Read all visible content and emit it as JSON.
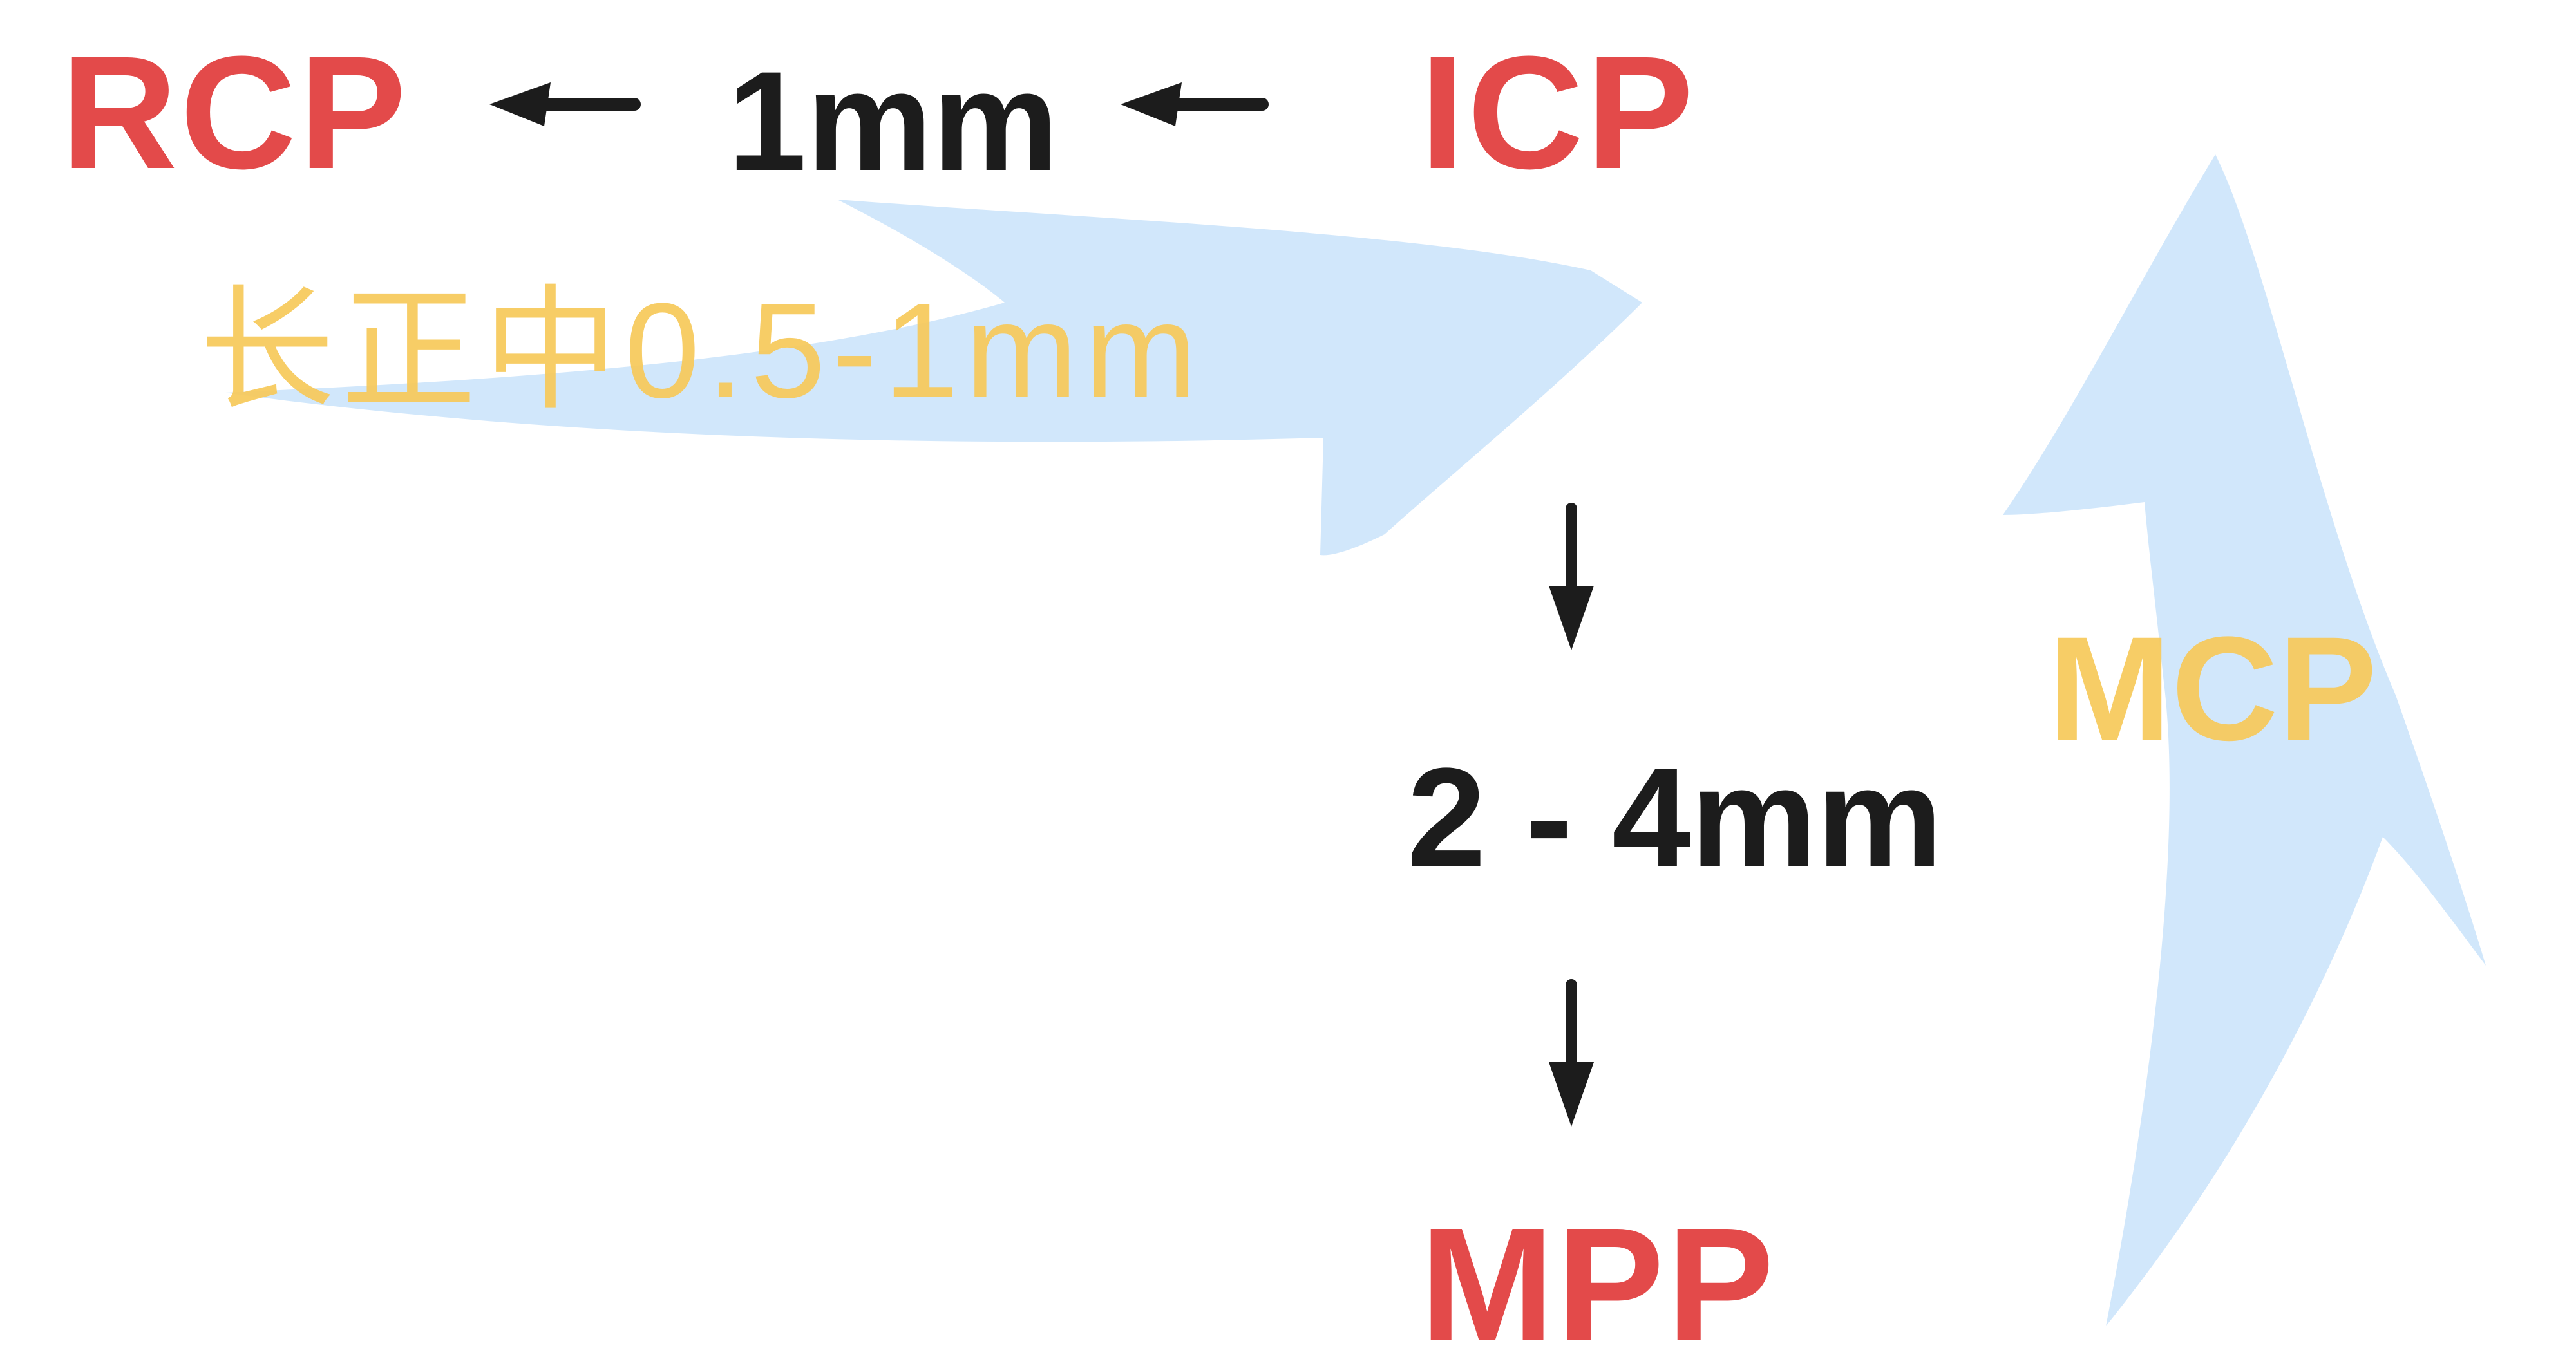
{
  "labels": {
    "rcp": "RCP",
    "icp": "ICP",
    "mpp": "MPP",
    "one_mm": "1mm",
    "two_four_mm": "2 - 4mm",
    "centric": "长正中0.5-1mm",
    "mcp": "MCP"
  },
  "colors": {
    "position_label": "#e34a4a",
    "distance_label": "#1c1c1c",
    "annotation_label": "#f7c95a",
    "wide_arrow": "#cfe6fb",
    "small_arrow": "#1c1c1c"
  },
  "icons": {
    "arrow_icp_to_1mm": "left-arrow-icon",
    "arrow_1mm_to_rcp": "left-arrow-icon",
    "arrow_icp_to_2_4mm": "down-arrow-icon",
    "arrow_2_4mm_to_mpp": "down-arrow-icon",
    "wide_arrow_centric": "curved-right-arrow-icon",
    "wide_arrow_mcp": "up-arrow-icon"
  }
}
